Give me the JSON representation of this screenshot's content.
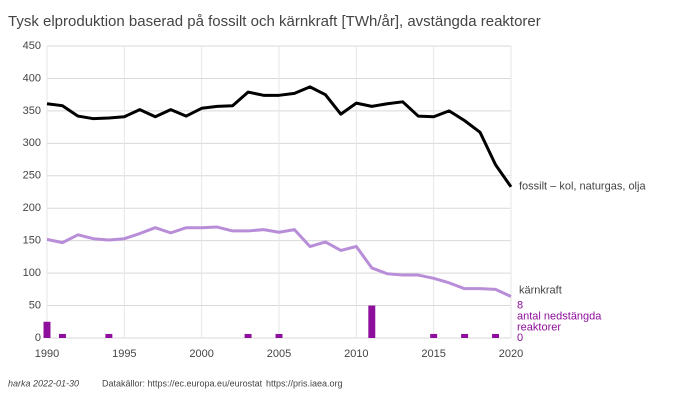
{
  "chart_data": {
    "type": "line",
    "title": "Tysk elproduktion baserad på fossilt och kärnkraft [TWh/år], avstängda reaktorer",
    "x": [
      1990,
      1991,
      1992,
      1993,
      1994,
      1995,
      1996,
      1997,
      1998,
      1999,
      2000,
      2001,
      2002,
      2003,
      2004,
      2005,
      2006,
      2007,
      2008,
      2009,
      2010,
      2011,
      2012,
      2013,
      2014,
      2015,
      2016,
      2017,
      2018,
      2019,
      2020
    ],
    "series": [
      {
        "name": "fossilt – kol, naturgas, olja",
        "color": "#000000",
        "values": [
          361,
          358,
          342,
          338,
          339,
          341,
          352,
          341,
          352,
          342,
          354,
          357,
          358,
          379,
          374,
          374,
          377,
          387,
          375,
          345,
          362,
          357,
          361,
          364,
          342,
          341,
          350,
          335,
          317,
          267,
          233
        ]
      },
      {
        "name": "kärnkraft",
        "color": "#b98ed9",
        "values": [
          152,
          147,
          159,
          153,
          151,
          153,
          161,
          170,
          162,
          170,
          170,
          171,
          165,
          165,
          167,
          163,
          167,
          141,
          148,
          135,
          141,
          108,
          99,
          97,
          97,
          92,
          85,
          76,
          76,
          75,
          64
        ]
      },
      {
        "name": "antal nedstängda reaktorer",
        "color": "#8e0f9c",
        "type": "bar",
        "axis": "y2",
        "values": [
          4,
          1,
          0,
          0,
          1,
          0,
          0,
          0,
          0,
          0,
          0,
          0,
          0,
          1,
          0,
          1,
          0,
          0,
          0,
          0,
          0,
          8,
          0,
          0,
          0,
          1,
          0,
          1,
          0,
          1,
          0
        ]
      }
    ],
    "xlim": [
      1990,
      2020
    ],
    "xticks": [
      1990,
      1995,
      2000,
      2005,
      2010,
      2015,
      2020
    ],
    "ylim": [
      0,
      450
    ],
    "yticks": [
      0,
      50,
      100,
      150,
      200,
      250,
      300,
      350,
      400,
      450
    ],
    "y2lim": [
      0,
      72
    ],
    "y2ticks": [
      0,
      8
    ],
    "grid": true,
    "xgrid": true,
    "footer": [
      "harka 2022-01-30",
      "Datakällor: https://ec.europa.eu/eurostat",
      "https://pris.iaea.org"
    ]
  }
}
